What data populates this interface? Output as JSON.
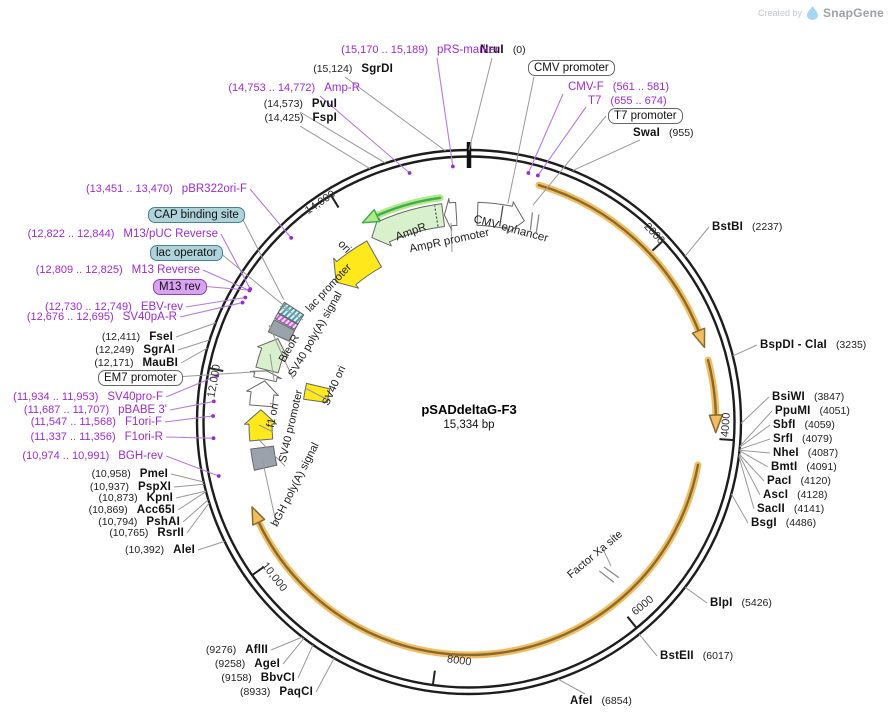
{
  "credit": {
    "prefix": "Created by",
    "brand": "SnapGene"
  },
  "plasmid": {
    "name": "pSADdeltaG-F3",
    "size": "15,334 bp",
    "length_bp": 15334
  },
  "colors": {
    "primer_text": "#9d2bd4",
    "enzyme_text": "#111111",
    "ring": "#1d1d1d",
    "orange_feature_light": "#f1bd62",
    "orange_feature_dark": "#8a6a2b",
    "green_cds_light": "#b5e88b",
    "green_cds_dark": "#3daf4e",
    "pale_green_fill": "#d8f1cc",
    "yellow_fill": "#ffe81c",
    "gray_fill": "#9aa2ac",
    "teal_label_bg": "#aed3da",
    "purple_label_bg": "#d9a3f2"
  },
  "ticks": [
    {
      "label": "2000",
      "bp": 2000
    },
    {
      "label": "4000",
      "bp": 4000
    },
    {
      "label": "6000",
      "bp": 6000
    },
    {
      "label": "8000",
      "bp": 8000
    },
    {
      "label": "10,000",
      "bp": 10000
    },
    {
      "label": "12,000",
      "bp": 12000
    },
    {
      "label": "14,000",
      "bp": 14000
    }
  ],
  "origin": {
    "bp": 0
  },
  "enzymes": [
    {
      "id": "nrui",
      "name": "NruI",
      "pos": "(0)",
      "bp": 0,
      "name_first": true
    },
    {
      "id": "sgrdi",
      "name": "SgrDI",
      "pos": "(15,124)",
      "bp": 15124,
      "name_first": false
    },
    {
      "id": "pvui",
      "name": "PvuI",
      "pos": "(14,573)",
      "bp": 14573,
      "name_first": false
    },
    {
      "id": "fspi",
      "name": "FspI",
      "pos": "(14,425)",
      "bp": 14425,
      "name_first": false
    },
    {
      "id": "swai",
      "name": "SwaI",
      "pos": "(955)",
      "bp": 955,
      "name_first": true
    },
    {
      "id": "bstbi",
      "name": "BstBI",
      "pos": "(2237)",
      "bp": 2237,
      "name_first": true
    },
    {
      "id": "bspdi",
      "name": "BspDI - ClaI",
      "pos": "(3235)",
      "bp": 3235,
      "name_first": true
    },
    {
      "id": "bsiwi",
      "name": "BsiWI",
      "pos": "(3847)",
      "bp": 3847,
      "name_first": true
    },
    {
      "id": "ppumi",
      "name": "PpuMI",
      "pos": "(4051)",
      "bp": 4051,
      "name_first": true
    },
    {
      "id": "sbfi",
      "name": "SbfI",
      "pos": "(4059)",
      "bp": 4059,
      "name_first": true
    },
    {
      "id": "srfi",
      "name": "SrfI",
      "pos": "(4079)",
      "bp": 4079,
      "name_first": true
    },
    {
      "id": "nhei",
      "name": "NheI",
      "pos": "(4087)",
      "bp": 4087,
      "name_first": true
    },
    {
      "id": "bmti",
      "name": "BmtI",
      "pos": "(4091)",
      "bp": 4091,
      "name_first": true
    },
    {
      "id": "paci",
      "name": "PacI",
      "pos": "(4120)",
      "bp": 4120,
      "name_first": true
    },
    {
      "id": "asci",
      "name": "AscI",
      "pos": "(4128)",
      "bp": 4128,
      "name_first": true
    },
    {
      "id": "sacii",
      "name": "SacII",
      "pos": "(4141)",
      "bp": 4141,
      "name_first": true
    },
    {
      "id": "bsgi",
      "name": "BsgI",
      "pos": "(4486)",
      "bp": 4486,
      "name_first": true
    },
    {
      "id": "blpi",
      "name": "BlpI",
      "pos": "(5426)",
      "bp": 5426,
      "name_first": true
    },
    {
      "id": "bsteii",
      "name": "BstEII",
      "pos": "(6017)",
      "bp": 6017,
      "name_first": true
    },
    {
      "id": "afei",
      "name": "AfeI",
      "pos": "(6854)",
      "bp": 6854,
      "name_first": true
    },
    {
      "id": "paqci",
      "name": "PaqCI",
      "pos": "(8933)",
      "bp": 8933,
      "name_first": false
    },
    {
      "id": "bbvci",
      "name": "BbvCI",
      "pos": "(9158)",
      "bp": 9158,
      "name_first": false
    },
    {
      "id": "agei",
      "name": "AgeI",
      "pos": "(9258)",
      "bp": 9258,
      "name_first": false
    },
    {
      "id": "aflii",
      "name": "AflII",
      "pos": "(9276)",
      "bp": 9276,
      "name_first": false
    },
    {
      "id": "alei",
      "name": "AleI",
      "pos": "(10,392)",
      "bp": 10392,
      "name_first": false
    },
    {
      "id": "rsrii",
      "name": "RsrII",
      "pos": "(10,765)",
      "bp": 10765,
      "name_first": false
    },
    {
      "id": "pshai",
      "name": "PshAI",
      "pos": "(10,794)",
      "bp": 10794,
      "name_first": false
    },
    {
      "id": "acc65i",
      "name": "Acc65I",
      "pos": "(10,869)",
      "bp": 10869,
      "name_first": false
    },
    {
      "id": "kpni",
      "name": "KpnI",
      "pos": "(10,873)",
      "bp": 10873,
      "name_first": false
    },
    {
      "id": "pspxi",
      "name": "PspXI",
      "pos": "(10,937)",
      "bp": 10937,
      "name_first": false
    },
    {
      "id": "pmei",
      "name": "PmeI",
      "pos": "(10,958)",
      "bp": 10958,
      "name_first": false
    },
    {
      "id": "fsei",
      "name": "FseI",
      "pos": "(12,411)",
      "bp": 12411,
      "name_first": false
    },
    {
      "id": "sgrai",
      "name": "SgrAI",
      "pos": "(12,249)",
      "bp": 12249,
      "name_first": false
    },
    {
      "id": "maubi",
      "name": "MauBI",
      "pos": "(12,171)",
      "bp": 12171,
      "name_first": false
    }
  ],
  "primers": [
    {
      "id": "prs_marker",
      "name": "pRS-marker",
      "range": "(15,170 .. 15,189)",
      "bp": 15180,
      "name_first": false
    },
    {
      "id": "amp_r",
      "name": "Amp-R",
      "range": "(14,753 .. 14,772)",
      "bp": 14762,
      "name_first": false
    },
    {
      "id": "cmv_f",
      "name": "CMV-F",
      "range": "(561 .. 581)",
      "bp": 571,
      "name_first": true
    },
    {
      "id": "t7",
      "name": "T7",
      "range": "(655 .. 674)",
      "bp": 665,
      "name_first": true
    },
    {
      "id": "pbr322ori_f",
      "name": "pBR322ori-F",
      "range": "(13,451 .. 13,470)",
      "bp": 13460,
      "name_first": false
    },
    {
      "id": "m13_puc_rev",
      "name": "M13/pUC Reverse",
      "range": "(12,822 .. 12,844)",
      "bp": 12833,
      "name_first": false
    },
    {
      "id": "m13_reverse",
      "name": "M13 Reverse",
      "range": "(12,809 .. 12,825)",
      "bp": 12817,
      "name_first": false
    },
    {
      "id": "ebv_rev",
      "name": "EBV-rev",
      "range": "(12,730 .. 12,749)",
      "bp": 12740,
      "name_first": false
    },
    {
      "id": "sv40pa_r",
      "name": "SV40pA-R",
      "range": "(12,676 .. 12,695)",
      "bp": 12685,
      "name_first": false
    },
    {
      "id": "sv40pro_f",
      "name": "SV40pro-F",
      "range": "(11,934 .. 11,953)",
      "bp": 11944,
      "name_first": false
    },
    {
      "id": "pbabe3",
      "name": "pBABE 3'",
      "range": "(11,687 .. 11,707)",
      "bp": 11697,
      "name_first": false
    },
    {
      "id": "f1ori_f",
      "name": "F1ori-F",
      "range": "(11,547 .. 11,568)",
      "bp": 11558,
      "name_first": false
    },
    {
      "id": "f1ori_r",
      "name": "F1ori-R",
      "range": "(11,337 .. 11,356)",
      "bp": 11346,
      "name_first": false
    },
    {
      "id": "bgh_rev",
      "name": "BGH-rev",
      "range": "(10,974 .. 10,991)",
      "bp": 10982,
      "name_first": false
    }
  ],
  "boxed_labels": [
    {
      "id": "cmv_promoter_box",
      "text": "CMV promoter",
      "style": "white",
      "bp": 430
    },
    {
      "id": "t7_promoter_box",
      "text": "T7 promoter",
      "style": "white",
      "bp": 700
    },
    {
      "id": "cap_box",
      "text": "CAP binding site",
      "style": "teal",
      "bp": 12925
    },
    {
      "id": "lac_operator_box",
      "text": "lac operator",
      "style": "teal",
      "bp": 12860
    },
    {
      "id": "m13_rev_box",
      "text": "M13 rev",
      "style": "purple",
      "bp": 12815
    },
    {
      "id": "em7_box",
      "text": "EM7 promoter",
      "style": "white",
      "bp": 12055
    }
  ],
  "feature_labels": [
    {
      "id": "ampr_label",
      "text": "AmpR"
    },
    {
      "id": "ampr_prom_label",
      "text": "AmpR promoter"
    },
    {
      "id": "cmv_enh_label",
      "text": "CMV enhancer"
    },
    {
      "id": "ori_label",
      "text": "ori"
    },
    {
      "id": "lac_prom_label",
      "text": "lac promoter"
    },
    {
      "id": "sv40_polya_label",
      "text": "SV40 poly(A) signal"
    },
    {
      "id": "bleor_label",
      "text": "BleoR"
    },
    {
      "id": "sv40_ori_label",
      "text": "SV40 ori"
    },
    {
      "id": "f1_ori_label",
      "text": "f1 ori"
    },
    {
      "id": "sv40_prom_label",
      "text": "SV40 promoter"
    },
    {
      "id": "bgh_label",
      "text": "bGH poly(A) signal"
    },
    {
      "id": "factor_xa_label",
      "text": "Factor Xa site"
    }
  ],
  "features": [
    {
      "id": "cmv_enhancer_arrow",
      "type": "band_arrow",
      "bp_start": 100,
      "bp_end": 655,
      "direction": "cw",
      "fill": "#ffffff",
      "divider_bp": 380
    },
    {
      "id": "gap_marker_cmv",
      "type": "slash_marker",
      "bp": 775,
      "r": 210
    },
    {
      "id": "viral_orf_1",
      "type": "arc_arrow",
      "bp_start": 700,
      "bp_end": 3060,
      "direction": "cw",
      "r": 247
    },
    {
      "id": "viral_orf_2",
      "type": "arc_arrow",
      "bp_start": 3215,
      "bp_end": 3915,
      "direction": "cw",
      "r": 247
    },
    {
      "id": "viral_orf_3",
      "type": "arc_arrow",
      "bp_start": 4285,
      "bp_end": 10565,
      "direction": "cw",
      "r": 233
    },
    {
      "id": "factor_xa_marker",
      "type": "slash_marker",
      "bp": 5855,
      "r": 207
    },
    {
      "id": "bgh_polya_box",
      "type": "band_box",
      "bp_start": 10960,
      "bp_end": 11200,
      "fill": "#9aa2ac"
    },
    {
      "id": "f1_ori_arrow",
      "type": "band_arrow",
      "bp_start": 11290,
      "bp_end": 11645,
      "direction": "cw",
      "fill": "#ffe81c"
    },
    {
      "id": "sv40_promoter_arrow",
      "type": "band_arrow",
      "bp_start": 11690,
      "bp_end": 11985,
      "direction": "cw",
      "fill": "#ffffff"
    },
    {
      "id": "sv40_ori_box",
      "type": "band_box",
      "bp_start": 11835,
      "bp_end": 12070,
      "fill": "#ffe81c",
      "r_in": 143,
      "r_out": 167
    },
    {
      "id": "em7_arrow",
      "type": "band_arrow",
      "bp_start": 12005,
      "bp_end": 12105,
      "direction": "cw",
      "fill": "#ffffff"
    },
    {
      "id": "bleor_arrow",
      "type": "band_arrow",
      "bp_start": 12115,
      "bp_end": 12505,
      "direction": "cw",
      "fill": "#d8f1cc"
    },
    {
      "id": "sv40_polya_box",
      "type": "band_box",
      "bp_start": 12530,
      "bp_end": 12680,
      "fill": "#9aa2ac"
    },
    {
      "id": "primer_region_hatch",
      "type": "band_box",
      "bp_start": 12695,
      "bp_end": 12762,
      "fill": "hatch-purple"
    },
    {
      "id": "lac_promoter_hatch",
      "type": "band_box",
      "bp_start": 12772,
      "bp_end": 12905,
      "fill": "hatch-teal"
    },
    {
      "id": "ori_arrow",
      "type": "band_arrow",
      "bp_start": 13480,
      "bp_end": 14080,
      "direction": "ccw",
      "fill": "#ffe81c",
      "r_in": 178,
      "r_out": 208
    },
    {
      "id": "ampr_arrow",
      "type": "band_arrow",
      "bp_start": 14150,
      "bp_end": 15030,
      "direction": "ccw",
      "fill": "#d8f1cc",
      "divider_bp": 14950,
      "divider_dotted": true
    },
    {
      "id": "ampr_cds_arc",
      "type": "arc_arrow",
      "bp_start": 14160,
      "bp_end": 15020,
      "direction": "ccw",
      "r": 226,
      "green": true
    },
    {
      "id": "ampr_promoter_arrow",
      "type": "band_arrow",
      "bp_start": 15045,
      "bp_end": 15185,
      "direction": "ccw",
      "fill": "#ffffff"
    }
  ]
}
